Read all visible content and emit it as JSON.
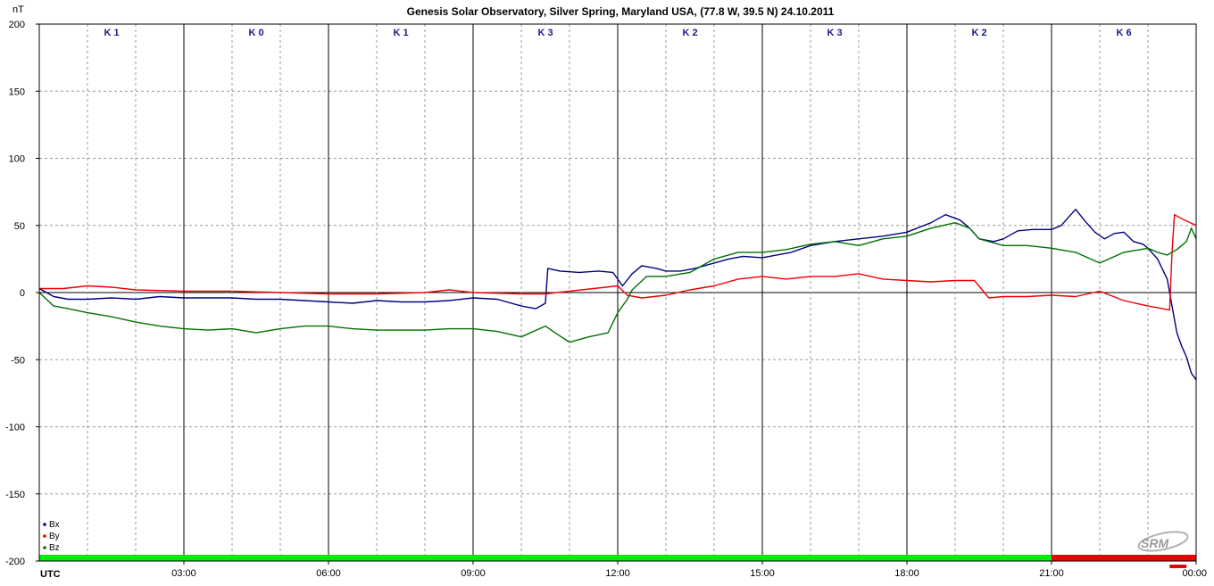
{
  "chart_data": {
    "type": "line",
    "title": "Genesis Solar Observatory, Silver Spring, Maryland USA, (77.8 W, 39.5 N)  24.10.2011",
    "ylabel": "nT",
    "xlabel": "UTC",
    "xlim": [
      0,
      24
    ],
    "ylim": [
      -200,
      200
    ],
    "yticks": [
      200,
      150,
      100,
      50,
      0,
      -50,
      -100,
      -150,
      -200
    ],
    "ytick_labels": [
      "200",
      "150",
      "100",
      "50",
      "0",
      "-50",
      "-100",
      "-150",
      "-200"
    ],
    "xticks": [
      3,
      6,
      9,
      12,
      15,
      18,
      21,
      24
    ],
    "xtick_labels": [
      "03:00",
      "06:00",
      "09:00",
      "12:00",
      "15:00",
      "18:00",
      "21:00",
      "00:00"
    ],
    "grid": true,
    "legend_position": "bottom-left",
    "k_index": [
      {
        "label": "K 1",
        "start": 0,
        "end": 3
      },
      {
        "label": "K 0",
        "start": 3,
        "end": 6
      },
      {
        "label": "K 1",
        "start": 6,
        "end": 9
      },
      {
        "label": "K 3",
        "start": 9,
        "end": 12
      },
      {
        "label": "K 2",
        "start": 12,
        "end": 15
      },
      {
        "label": "K 3",
        "start": 15,
        "end": 18
      },
      {
        "label": "K 2",
        "start": 18,
        "end": 21
      },
      {
        "label": "K 6",
        "start": 21,
        "end": 24
      }
    ],
    "status_bar": [
      {
        "start": 0,
        "end": 21,
        "color": "#00ee00"
      },
      {
        "start": 21,
        "end": 24,
        "color": "#ee0000"
      }
    ],
    "status_marker": {
      "start": 23.45,
      "end": 23.8,
      "color": "#ee0000"
    },
    "series": [
      {
        "name": "Bx",
        "color": "#000080",
        "points": [
          [
            0,
            3
          ],
          [
            0.3,
            -3
          ],
          [
            0.6,
            -5
          ],
          [
            1,
            -5
          ],
          [
            1.5,
            -4
          ],
          [
            2,
            -5
          ],
          [
            2.5,
            -3
          ],
          [
            3,
            -4
          ],
          [
            3.5,
            -4
          ],
          [
            4,
            -4
          ],
          [
            4.5,
            -5
          ],
          [
            5,
            -5
          ],
          [
            5.5,
            -6
          ],
          [
            6,
            -7
          ],
          [
            6.5,
            -8
          ],
          [
            7,
            -6
          ],
          [
            7.5,
            -7
          ],
          [
            8,
            -7
          ],
          [
            8.5,
            -6
          ],
          [
            9,
            -4
          ],
          [
            9.5,
            -5
          ],
          [
            10,
            -10
          ],
          [
            10.3,
            -12
          ],
          [
            10.5,
            -8
          ],
          [
            10.55,
            18
          ],
          [
            10.8,
            16
          ],
          [
            11.2,
            15
          ],
          [
            11.6,
            16
          ],
          [
            11.9,
            15
          ],
          [
            12.1,
            5
          ],
          [
            12.3,
            14
          ],
          [
            12.5,
            20
          ],
          [
            12.8,
            18
          ],
          [
            13,
            16
          ],
          [
            13.3,
            16
          ],
          [
            13.6,
            18
          ],
          [
            14,
            22
          ],
          [
            14.3,
            25
          ],
          [
            14.6,
            27
          ],
          [
            15,
            26
          ],
          [
            15.3,
            28
          ],
          [
            15.6,
            30
          ],
          [
            16,
            35
          ],
          [
            16.5,
            38
          ],
          [
            17,
            40
          ],
          [
            17.5,
            42
          ],
          [
            18,
            45
          ],
          [
            18.5,
            52
          ],
          [
            18.8,
            58
          ],
          [
            19.1,
            54
          ],
          [
            19.3,
            48
          ],
          [
            19.5,
            40
          ],
          [
            19.8,
            38
          ],
          [
            20,
            40
          ],
          [
            20.3,
            46
          ],
          [
            20.6,
            47
          ],
          [
            21,
            47
          ],
          [
            21.2,
            50
          ],
          [
            21.4,
            58
          ],
          [
            21.5,
            62
          ],
          [
            21.7,
            53
          ],
          [
            21.9,
            45
          ],
          [
            22.1,
            40
          ],
          [
            22.3,
            44
          ],
          [
            22.5,
            45
          ],
          [
            22.7,
            38
          ],
          [
            22.9,
            36
          ],
          [
            23,
            33
          ],
          [
            23.2,
            25
          ],
          [
            23.4,
            10
          ],
          [
            23.5,
            -10
          ],
          [
            23.6,
            -30
          ],
          [
            23.7,
            -40
          ],
          [
            23.8,
            -48
          ],
          [
            23.9,
            -60
          ],
          [
            24,
            -65
          ]
        ]
      },
      {
        "name": "By",
        "color": "#ee0000",
        "points": [
          [
            0,
            3
          ],
          [
            0.5,
            3
          ],
          [
            1,
            5
          ],
          [
            1.5,
            4
          ],
          [
            2,
            2
          ],
          [
            3,
            1
          ],
          [
            4,
            1
          ],
          [
            5,
            0
          ],
          [
            6,
            -1
          ],
          [
            7,
            -1
          ],
          [
            8,
            0
          ],
          [
            8.5,
            2
          ],
          [
            9,
            0
          ],
          [
            10,
            -1
          ],
          [
            10.5,
            -1
          ],
          [
            11,
            1
          ],
          [
            11.5,
            3
          ],
          [
            12,
            5
          ],
          [
            12.2,
            -2
          ],
          [
            12.5,
            -4
          ],
          [
            13,
            -2
          ],
          [
            13.5,
            2
          ],
          [
            14,
            5
          ],
          [
            14.5,
            10
          ],
          [
            15,
            12
          ],
          [
            15.5,
            10
          ],
          [
            16,
            12
          ],
          [
            16.5,
            12
          ],
          [
            17,
            14
          ],
          [
            17.5,
            10
          ],
          [
            18,
            9
          ],
          [
            18.5,
            8
          ],
          [
            19,
            9
          ],
          [
            19.4,
            9
          ],
          [
            19.7,
            -4
          ],
          [
            20,
            -3
          ],
          [
            20.5,
            -3
          ],
          [
            21,
            -2
          ],
          [
            21.5,
            -3
          ],
          [
            22,
            1
          ],
          [
            22.5,
            -6
          ],
          [
            23,
            -10
          ],
          [
            23.3,
            -12
          ],
          [
            23.45,
            -13
          ],
          [
            23.5,
            30
          ],
          [
            23.55,
            58
          ],
          [
            23.7,
            55
          ],
          [
            24,
            50
          ]
        ]
      },
      {
        "name": "Bz",
        "color": "#007000",
        "points": [
          [
            0,
            0
          ],
          [
            0.3,
            -10
          ],
          [
            0.6,
            -12
          ],
          [
            1,
            -15
          ],
          [
            1.5,
            -18
          ],
          [
            2,
            -22
          ],
          [
            2.5,
            -25
          ],
          [
            3,
            -27
          ],
          [
            3.5,
            -28
          ],
          [
            4,
            -27
          ],
          [
            4.5,
            -30
          ],
          [
            5,
            -27
          ],
          [
            5.5,
            -25
          ],
          [
            6,
            -25
          ],
          [
            6.5,
            -27
          ],
          [
            7,
            -28
          ],
          [
            7.5,
            -28
          ],
          [
            8,
            -28
          ],
          [
            8.5,
            -27
          ],
          [
            9,
            -27
          ],
          [
            9.5,
            -29
          ],
          [
            10,
            -33
          ],
          [
            10.5,
            -25
          ],
          [
            10.7,
            -30
          ],
          [
            11,
            -37
          ],
          [
            11.4,
            -33
          ],
          [
            11.8,
            -30
          ],
          [
            12,
            -15
          ],
          [
            12.2,
            -5
          ],
          [
            12.3,
            2
          ],
          [
            12.6,
            12
          ],
          [
            13,
            12
          ],
          [
            13.5,
            15
          ],
          [
            14,
            25
          ],
          [
            14.5,
            30
          ],
          [
            15,
            30
          ],
          [
            15.5,
            32
          ],
          [
            16,
            36
          ],
          [
            16.5,
            38
          ],
          [
            17,
            35
          ],
          [
            17.5,
            40
          ],
          [
            18,
            42
          ],
          [
            18.5,
            48
          ],
          [
            19,
            52
          ],
          [
            19.3,
            48
          ],
          [
            19.5,
            40
          ],
          [
            20,
            35
          ],
          [
            20.5,
            35
          ],
          [
            21,
            33
          ],
          [
            21.5,
            30
          ],
          [
            22,
            22
          ],
          [
            22.5,
            30
          ],
          [
            23,
            33
          ],
          [
            23.2,
            30
          ],
          [
            23.4,
            28
          ],
          [
            23.6,
            32
          ],
          [
            23.8,
            38
          ],
          [
            23.9,
            48
          ],
          [
            24,
            40
          ]
        ]
      }
    ]
  },
  "logo": {
    "text": "SRM"
  }
}
